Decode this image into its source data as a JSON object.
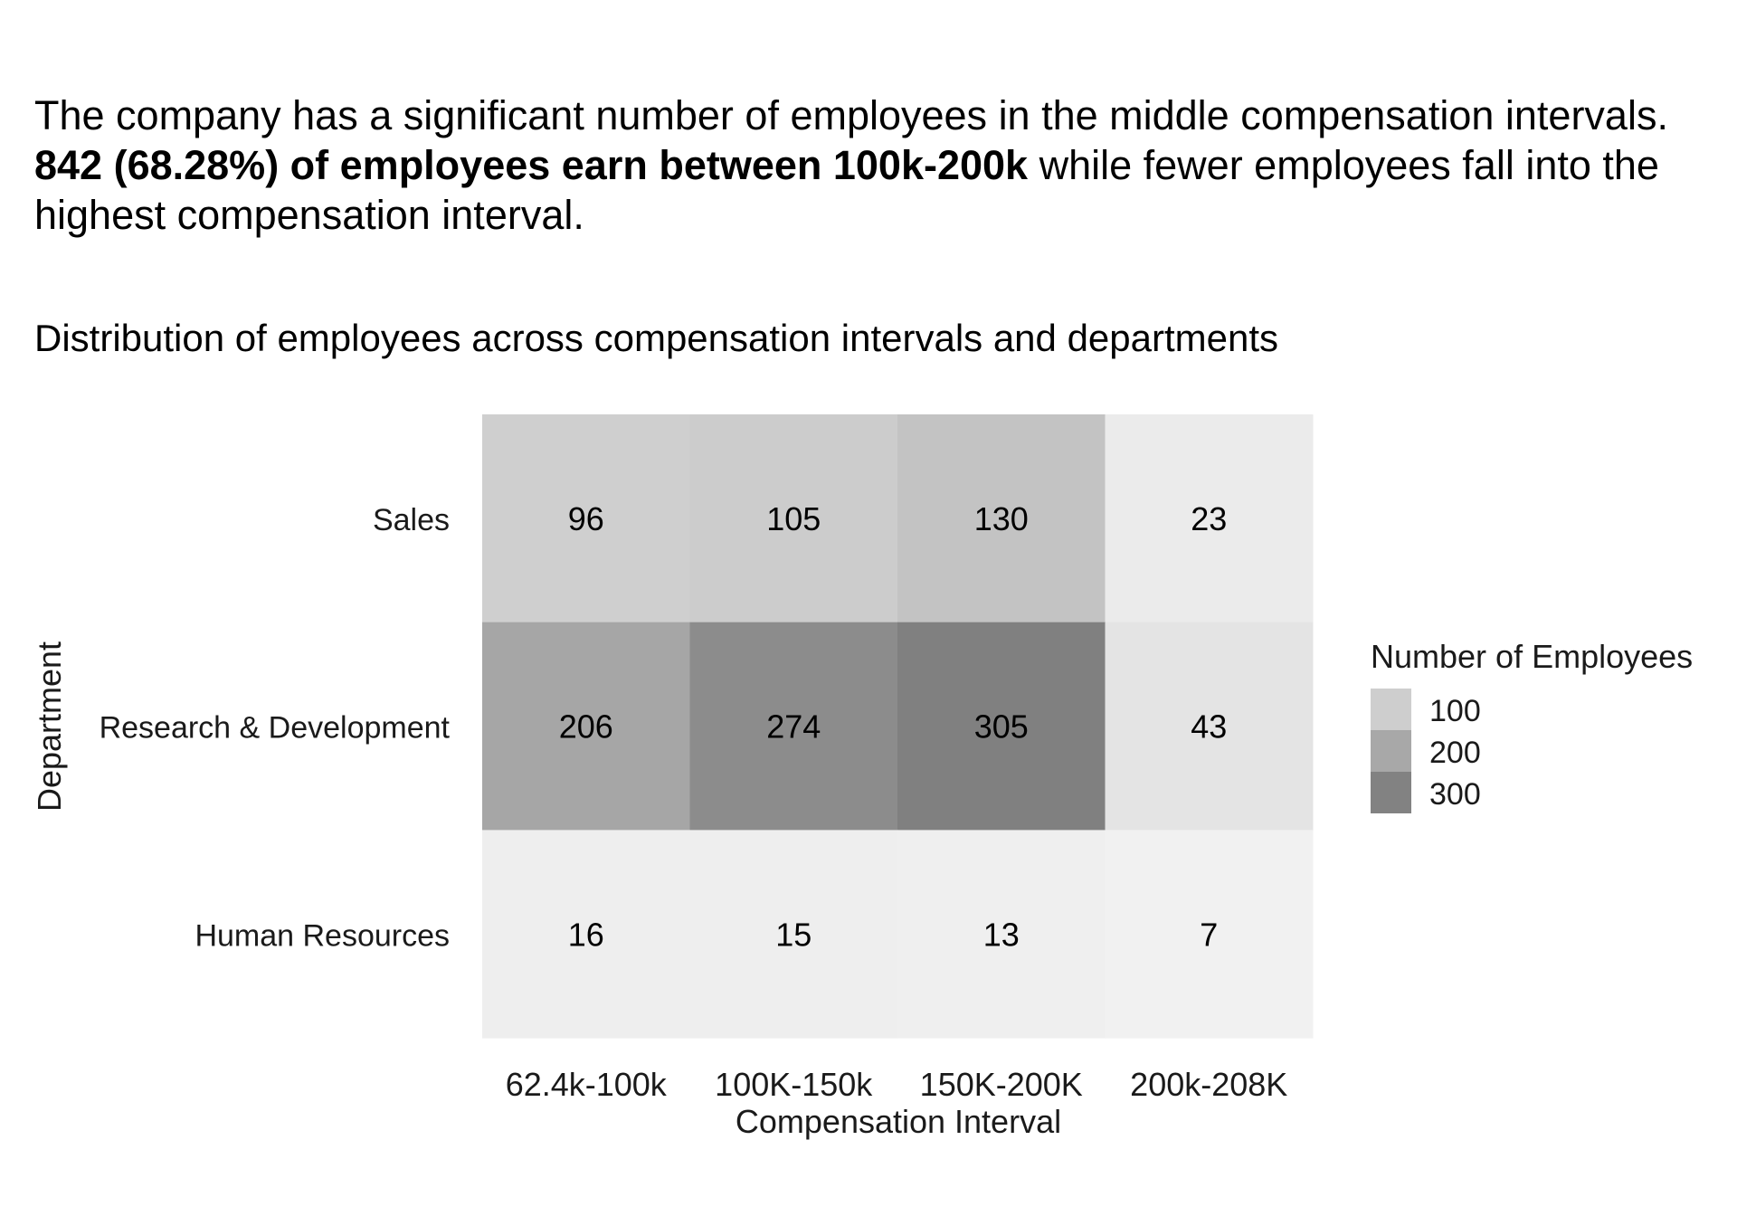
{
  "caption": {
    "line1": "The company has a significant number of employees in the middle compensation intervals.",
    "bold": "842 (68.28%) of employees earn between 100k-200k",
    "rest": " while fewer employees fall into the",
    "line3": "highest compensation interval."
  },
  "chart_data": {
    "type": "heatmap",
    "title": "Distribution of employees across compensation intervals and departments",
    "xlabel": "Compensation Interval",
    "ylabel": "Department",
    "x_categories": [
      "62.4k-100k",
      "100K-150k",
      "150K-200K",
      "200k-208K"
    ],
    "y_categories": [
      "Sales",
      "Research & Development",
      "Human Resources"
    ],
    "values": [
      [
        96,
        105,
        130,
        23
      ],
      [
        206,
        274,
        305,
        43
      ],
      [
        16,
        15,
        13,
        7
      ]
    ],
    "legend": {
      "title": "Number of Employees",
      "breaks": [
        100,
        200,
        300
      ],
      "placement": "right"
    },
    "color_scale": {
      "low": "#f4f4f4",
      "high": "#808080"
    },
    "grid": false
  }
}
